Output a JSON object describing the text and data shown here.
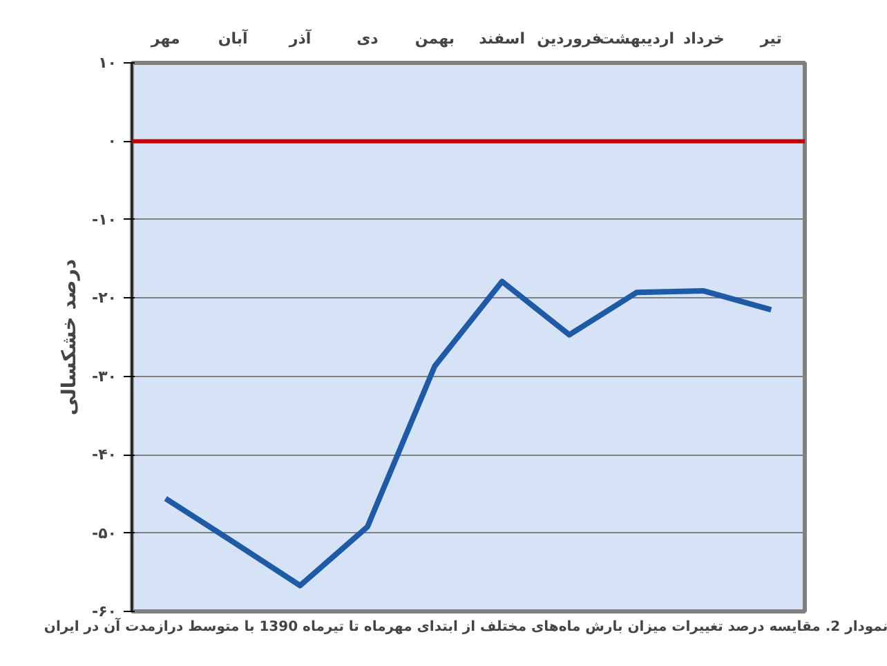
{
  "chart_data": {
    "type": "line",
    "ylabel": "درصد خشکسالی",
    "categories": [
      "مهر",
      "آبان",
      "آذر",
      "دی",
      "بهمن",
      "اسفند",
      "فروردین",
      "اردیبهشت",
      "خرداد",
      "تیر"
    ],
    "series": [
      {
        "color": "#1f5aa6",
        "values": [
          -45.6,
          -51.1,
          -56.7,
          -49.2,
          -28.7,
          -17.9,
          -24.7,
          -19.3,
          -19.1,
          -21.5
        ]
      }
    ],
    "ylim": [
      -60,
      10
    ],
    "yticks": [
      {
        "value": 10,
        "label": "۱۰"
      },
      {
        "value": 0,
        "label": "۰"
      },
      {
        "value": -10,
        "label": "-۱۰"
      },
      {
        "value": -20,
        "label": "-۲۰"
      },
      {
        "value": -30,
        "label": "-۳۰"
      },
      {
        "value": -40,
        "label": "-۴۰"
      },
      {
        "value": -50,
        "label": "-۵۰"
      },
      {
        "value": -60,
        "label": "-۶۰"
      }
    ],
    "ref_lines": [
      {
        "axis": "y",
        "value": 0,
        "color": "#c00000"
      }
    ],
    "grid": "y",
    "legend": false,
    "marker": "none",
    "line_style": "solid",
    "annotations": [
      "نمودار 2.  مقایسه درصد تغییرات میزان بارش ماه‌های مختلف از ابتدای مهرماه تا تیرماه 1390 با متوسط درازمدت آن در ایران"
    ]
  }
}
